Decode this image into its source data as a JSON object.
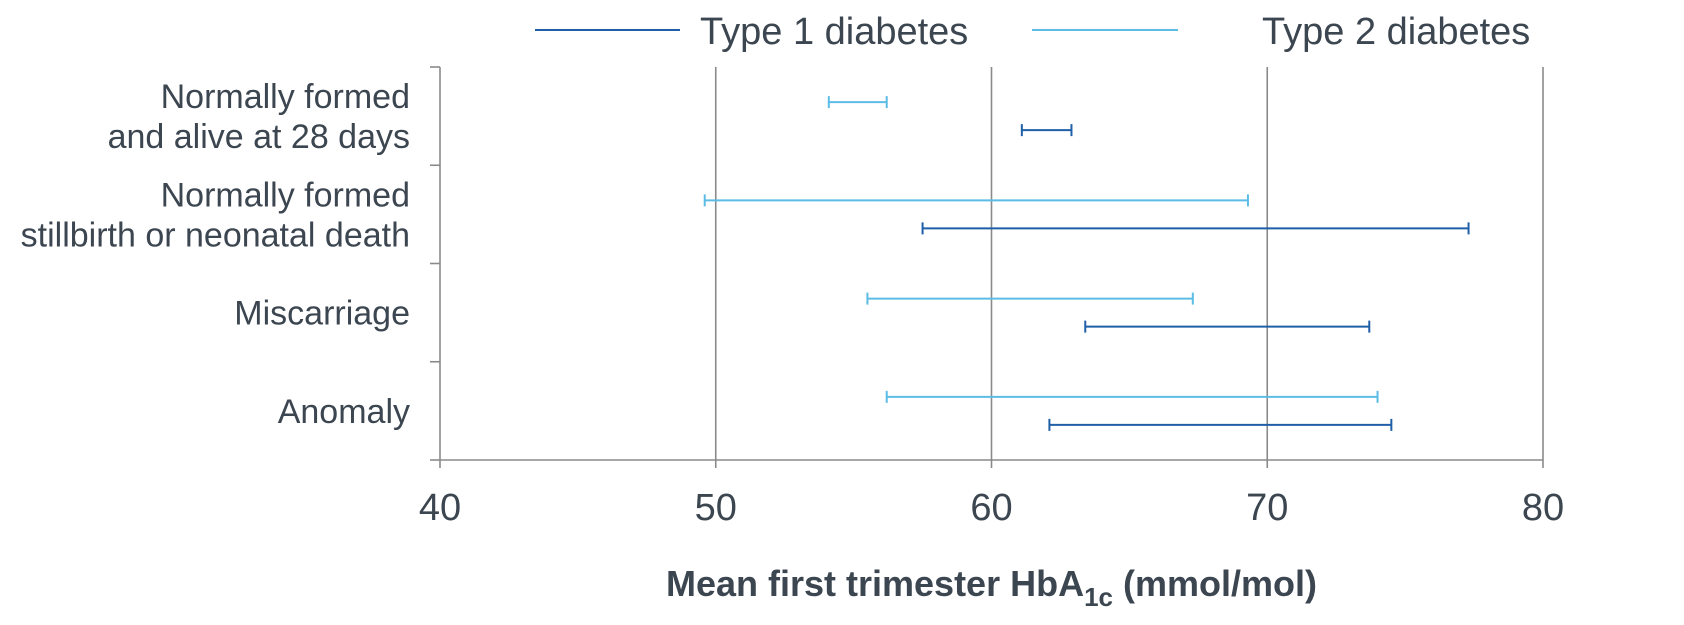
{
  "chart_data": {
    "type": "range",
    "title": "",
    "xlabel_parts": {
      "pre": "Mean first trimester HbA",
      "sub": "1c",
      "post": " (mmol/mol)"
    },
    "xlim": [
      40,
      80
    ],
    "xticks": [
      40,
      50,
      60,
      70,
      80
    ],
    "grid": true,
    "legend_position": "top",
    "categories": [
      [
        "Normally formed",
        "and alive at 28 days"
      ],
      [
        "Normally formed",
        "stillbirth or neonatal death"
      ],
      [
        "Miscarriage"
      ],
      [
        "Anomaly"
      ]
    ],
    "series": [
      {
        "name": "Type 1 diabetes",
        "color": "#1f5fa8",
        "ranges": [
          [
            61.1,
            62.9
          ],
          [
            57.5,
            77.3
          ],
          [
            63.4,
            73.7
          ],
          [
            62.1,
            74.5
          ]
        ]
      },
      {
        "name": "Type 2 diabetes",
        "color": "#5bbde6",
        "ranges": [
          [
            54.1,
            56.2
          ],
          [
            49.6,
            69.3
          ],
          [
            55.5,
            67.3
          ],
          [
            56.2,
            74.0
          ]
        ]
      }
    ]
  }
}
